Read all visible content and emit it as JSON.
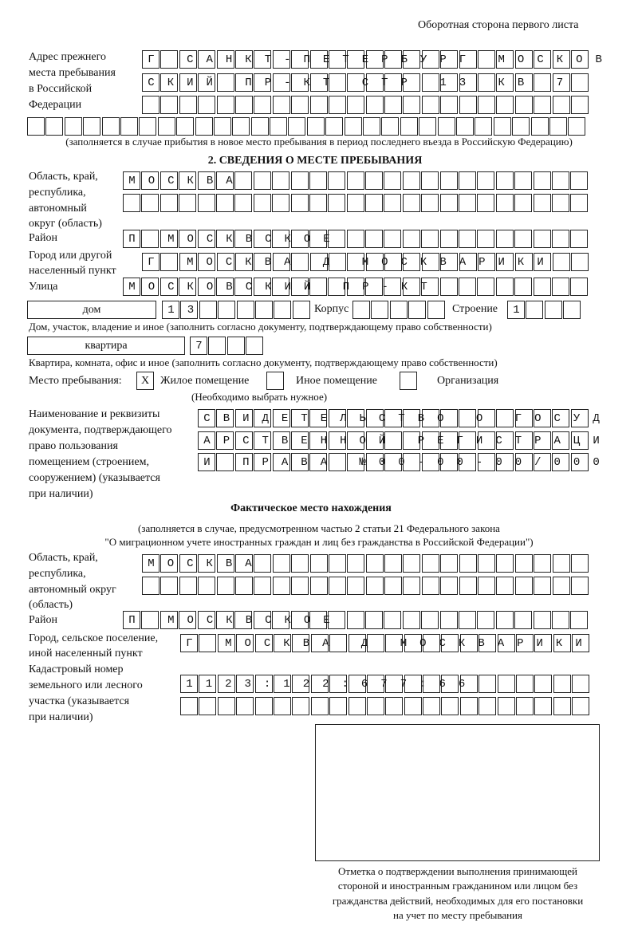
{
  "header": "Оборотная сторона первого листа",
  "previous_address": {
    "label_lines": [
      "Адрес прежнего",
      "места пребывания",
      "в Российской",
      "Федерации"
    ],
    "rows": [
      "Г САНКТ-ПЕТЕРБУРГ МОСКОВ",
      "СКИЙ ПР-КТ СТР 13 КВ 7  ",
      "                        ",
      "                              "
    ],
    "note": "(заполняется в случае прибытия в новое место пребывания в период последнего въезда в Российскую Федерацию)"
  },
  "section2": {
    "title": "2. СВЕДЕНИЯ О МЕСТЕ ПРЕБЫВАНИЯ",
    "region_label_lines": [
      "Область, край,",
      "республика,",
      "автономный",
      "округ (область)"
    ],
    "region_rows": [
      "МОСКВА                   ",
      "                         "
    ],
    "district_label": "Район",
    "district": "П МОСКВСКОЕ              ",
    "city_label_lines": [
      "Город или другой",
      "населенный пункт"
    ],
    "city": "Г МОСКВА Д МОСКВАРИКИ   ",
    "street_label": "Улица",
    "street": "МОСКОВСКИЙ ПР-КТ         ",
    "house_type": "дом",
    "house_number": "13      ",
    "korpus_label": "Корпус",
    "korpus": "     ",
    "stroenie_label": "Строение",
    "stroenie": "1   ",
    "house_note": "Дом, участок, владение и иное (заполнить согласно документу, подтверждающему право собственности)",
    "flat_type": "квартира",
    "flat_number": "7   ",
    "flat_note": "Квартира, комната, офис и иное (заполнить согласно документу, подтверждающему право собственности)",
    "place_label": "Место пребывания:",
    "place_options": [
      {
        "label": "Жилое помещение",
        "mark": "X"
      },
      {
        "label": "Иное помещение",
        "mark": ""
      },
      {
        "label": "Организация",
        "mark": ""
      }
    ],
    "place_note": "(Необходимо выбрать нужное)",
    "doc_label_lines": [
      "Наименование и реквизиты",
      "документа, подтверждающего",
      "право пользования",
      "помещением (строением,",
      "сооружением) (указывается",
      "при наличии)"
    ],
    "doc_rows": [
      "СВИДЕТЕЛЬСТВО О ГОСУД",
      "АРСТВЕННОЙ РЕГИСТРАЦИ",
      "И ПРАВА №00-00-00/000"
    ]
  },
  "actual": {
    "title": "Фактическое место нахождения",
    "note_lines": [
      "(заполняется в случае, предусмотренном частью 2 статьи 21 Федерального закона",
      "\"О миграционном учете иностранных граждан и лиц без гражданства в Российской Федерации\")"
    ],
    "region_label_lines": [
      "Область, край,",
      "республика,",
      "автономный округ",
      "(область)"
    ],
    "region_rows": [
      "МОСКВА                  ",
      "                        "
    ],
    "district_label": "Район",
    "district": "П МОСКВСКОЕ              ",
    "city_label_lines": [
      "Город, сельское поселение,",
      "иной населенный пункт"
    ],
    "city": "Г МОСКВА Д МОСКВАРИКИ ",
    "cadastral_label_lines": [
      "Кадастровый номер",
      "земельного или лесного",
      "участка (указывается",
      "при наличии)"
    ],
    "cadastral_rows": [
      "1123:122:677:66       ",
      "                      "
    ]
  },
  "confirmation": {
    "caption_lines": [
      "Отметка о подтверждении выполнения принимающей",
      "стороной и иностранным гражданином или лицом без",
      "гражданства действий, необходимых для его постановки",
      "на учет по месту пребывания"
    ]
  }
}
